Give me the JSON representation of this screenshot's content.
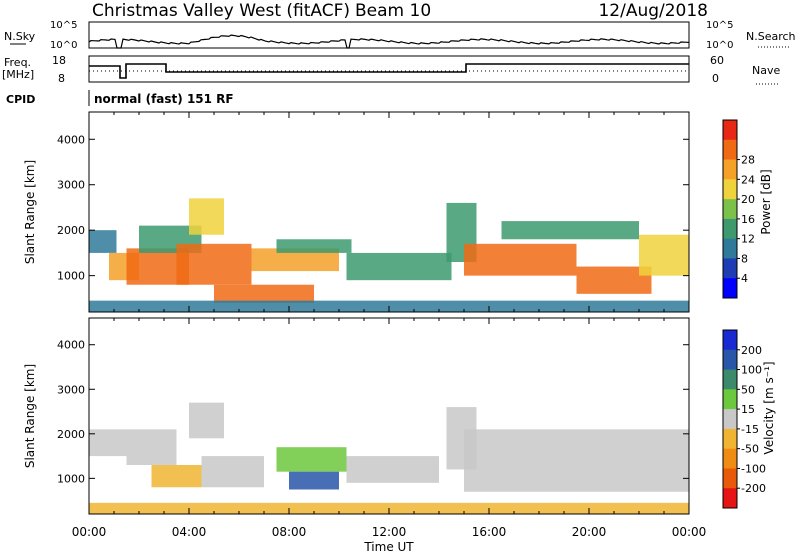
{
  "header": {
    "station": "Christmas Valley West (fitACF)",
    "beam": "Beam 10",
    "date": "12/Aug/2018"
  },
  "nsky_panel": {
    "left_label": "N.Sky",
    "right_label": "N.Search",
    "left_ticks": [
      "10^5",
      "10^0"
    ],
    "right_ticks": [
      "10^5",
      "10^0"
    ]
  },
  "freq_panel": {
    "left_label_line1": "Freq.",
    "left_label_line2": "[MHz]",
    "right_label": "Nave",
    "left_ticks": [
      "18",
      "8"
    ],
    "right_ticks": [
      "60",
      "0"
    ]
  },
  "cpid": {
    "label": "CPID",
    "value": "normal (fast) 151 RF"
  },
  "colors": {
    "frame": "#000000",
    "power_scale": [
      "#0000ff",
      "#1e3cb4",
      "#2f7a9a",
      "#3c9a6e",
      "#7cc24a",
      "#f0d23c",
      "#f5a028",
      "#f06a14",
      "#e62814"
    ],
    "velocity_scale": [
      "#1a2ad2",
      "#2856a8",
      "#3c8a6c",
      "#6cc83c",
      "#c8c8c8",
      "#f0b432",
      "#f08c14",
      "#e85a0a",
      "#e61414"
    ]
  },
  "chart_data": [
    {
      "type": "heatmap",
      "title": "",
      "xlabel": "",
      "ylabel": "Slant Range [km]",
      "x_ticks": [
        "00:00",
        "04:00",
        "08:00",
        "12:00",
        "16:00",
        "20:00",
        "00:00"
      ],
      "y_ticks": [
        "1000",
        "2000",
        "3000",
        "4000"
      ],
      "ylim": [
        200,
        4600
      ],
      "grid": false,
      "colorbar": {
        "label": "Power [dB]",
        "ticks": [
          "4",
          "8",
          "12",
          "16",
          "20",
          "24",
          "28"
        ],
        "range": [
          0,
          32
        ]
      },
      "regions": [
        {
          "t0": 0.0,
          "t1": 1.1,
          "r0": 1500,
          "r1": 2000,
          "value": 10
        },
        {
          "t0": 0.8,
          "t1": 2.0,
          "r0": 900,
          "r1": 1500,
          "value": 22
        },
        {
          "t0": 1.5,
          "t1": 4.0,
          "r0": 800,
          "r1": 1600,
          "value": 26
        },
        {
          "t0": 2.0,
          "t1": 4.5,
          "r0": 1500,
          "r1": 2100,
          "value": 12
        },
        {
          "t0": 4.0,
          "t1": 5.4,
          "r0": 1900,
          "r1": 2700,
          "value": 20
        },
        {
          "t0": 3.5,
          "t1": 6.5,
          "r0": 800,
          "r1": 1700,
          "value": 27
        },
        {
          "t0": 5.0,
          "t1": 9.0,
          "r0": 400,
          "r1": 800,
          "value": 27
        },
        {
          "t0": 6.5,
          "t1": 10.0,
          "r0": 1100,
          "r1": 1600,
          "value": 22
        },
        {
          "t0": 7.5,
          "t1": 10.5,
          "r0": 1500,
          "r1": 1800,
          "value": 12
        },
        {
          "t0": 10.3,
          "t1": 14.5,
          "r0": 900,
          "r1": 1500,
          "value": 13
        },
        {
          "t0": 14.3,
          "t1": 15.5,
          "r0": 1300,
          "r1": 2600,
          "value": 14
        },
        {
          "t0": 15.0,
          "t1": 19.5,
          "r0": 1000,
          "r1": 1700,
          "value": 25
        },
        {
          "t0": 16.5,
          "t1": 22.0,
          "r0": 1800,
          "r1": 2200,
          "value": 11
        },
        {
          "t0": 19.5,
          "t1": 22.5,
          "r0": 600,
          "r1": 1200,
          "value": 28
        },
        {
          "t0": 22.0,
          "t1": 24.0,
          "r0": 1000,
          "r1": 1900,
          "value": 18
        },
        {
          "t0": 0.0,
          "t1": 24.0,
          "r0": 200,
          "r1": 450,
          "value": 9
        }
      ]
    },
    {
      "type": "heatmap",
      "title": "",
      "xlabel": "Time UT",
      "ylabel": "Slant Range [km]",
      "x_ticks": [
        "00:00",
        "04:00",
        "08:00",
        "12:00",
        "16:00",
        "20:00",
        "00:00"
      ],
      "y_ticks": [
        "1000",
        "2000",
        "3000",
        "4000"
      ],
      "ylim": [
        200,
        4600
      ],
      "grid": false,
      "colorbar": {
        "label": "Velocity [m s⁻¹]",
        "ticks": [
          "200",
          "100",
          "50",
          "15",
          "-15",
          "-50",
          "-100",
          "-200"
        ],
        "range": [
          -250,
          250
        ]
      },
      "regions": [
        {
          "t0": 0.0,
          "t1": 1.5,
          "r0": 1500,
          "r1": 2100,
          "value": 0
        },
        {
          "t0": 1.5,
          "t1": 3.5,
          "r0": 1300,
          "r1": 2100,
          "value": 0
        },
        {
          "t0": 2.5,
          "t1": 4.5,
          "r0": 800,
          "r1": 1300,
          "value": -70
        },
        {
          "t0": 4.0,
          "t1": 5.4,
          "r0": 1900,
          "r1": 2700,
          "value": 0
        },
        {
          "t0": 4.5,
          "t1": 7.0,
          "r0": 800,
          "r1": 1500,
          "value": 0
        },
        {
          "t0": 7.5,
          "t1": 10.3,
          "r0": 1150,
          "r1": 1700,
          "value": 40
        },
        {
          "t0": 8.0,
          "t1": 10.0,
          "r0": 750,
          "r1": 1150,
          "value": 150
        },
        {
          "t0": 10.3,
          "t1": 14.0,
          "r0": 900,
          "r1": 1500,
          "value": 0
        },
        {
          "t0": 14.3,
          "t1": 15.5,
          "r0": 1200,
          "r1": 2600,
          "value": 0
        },
        {
          "t0": 15.0,
          "t1": 24.0,
          "r0": 700,
          "r1": 2100,
          "value": 0
        },
        {
          "t0": 0.0,
          "t1": 24.0,
          "r0": 200,
          "r1": 450,
          "value": -30
        }
      ]
    }
  ]
}
